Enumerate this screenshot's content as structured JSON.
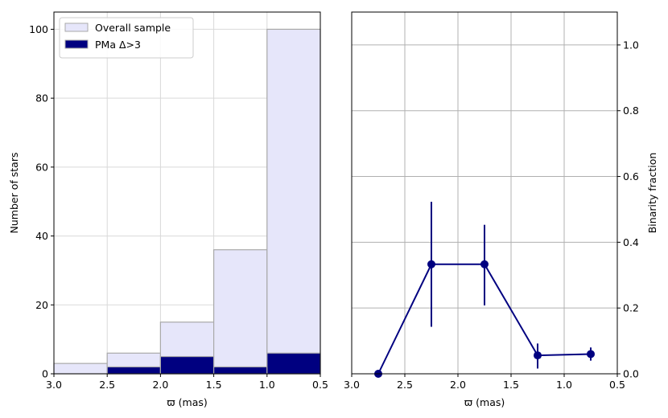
{
  "chart_data": [
    {
      "type": "bar",
      "subtype": "stacked-histogram",
      "xlabel": "ϖ (mas)",
      "ylabel": "Number of stars",
      "xlim": [
        3.0,
        0.5
      ],
      "ylim": [
        0,
        105
      ],
      "x_inverted": true,
      "xticks": [
        3.0,
        2.5,
        2.0,
        1.5,
        1.0,
        0.5
      ],
      "xtick_labels": [
        "3.0",
        "2.5",
        "2.0",
        "1.5",
        "1.0",
        "0.5"
      ],
      "yticks": [
        0,
        20,
        40,
        60,
        80,
        100
      ],
      "ytick_labels": [
        "0",
        "20",
        "40",
        "60",
        "80",
        "100"
      ],
      "grid": true,
      "legend_position": "upper-left",
      "bins": [
        [
          3.0,
          2.5
        ],
        [
          2.5,
          2.0
        ],
        [
          2.0,
          1.5
        ],
        [
          1.5,
          1.0
        ],
        [
          1.0,
          0.5
        ]
      ],
      "series": [
        {
          "name": "Overall sample",
          "values": [
            3,
            6,
            15,
            36,
            100
          ],
          "color": "#e6e6fa",
          "edge": "#a9a9a9"
        },
        {
          "name": "PMa Δ>3",
          "values": [
            0,
            2,
            5,
            2,
            6
          ],
          "color": "#000080",
          "edge": "#a9a9a9"
        }
      ]
    },
    {
      "type": "scatter",
      "subtype": "errorbar-line",
      "xlabel": "ϖ (mas)",
      "ylabel": "Binarity fraction",
      "xlim": [
        3.0,
        0.5
      ],
      "ylim": [
        0,
        1.1
      ],
      "x_inverted": true,
      "y_axis_side": "right",
      "xticks": [
        3.0,
        2.5,
        2.0,
        1.5,
        1.0,
        0.5
      ],
      "xtick_labels": [
        "3.0",
        "2.5",
        "2.0",
        "1.5",
        "1.0",
        "0.5"
      ],
      "yticks": [
        0.0,
        0.2,
        0.4,
        0.6,
        0.8,
        1.0
      ],
      "ytick_labels": [
        "0.0",
        "0.2",
        "0.4",
        "0.6",
        "0.8",
        "1.0"
      ],
      "grid": true,
      "color": "#000080",
      "x": [
        2.75,
        2.25,
        1.75,
        1.25,
        0.75
      ],
      "y": [
        0.0,
        0.333,
        0.333,
        0.056,
        0.06
      ],
      "yerr_low": [
        0.0,
        0.19,
        0.125,
        0.04,
        0.02
      ],
      "yerr_high": [
        0.0,
        0.19,
        0.12,
        0.036,
        0.02
      ]
    }
  ]
}
